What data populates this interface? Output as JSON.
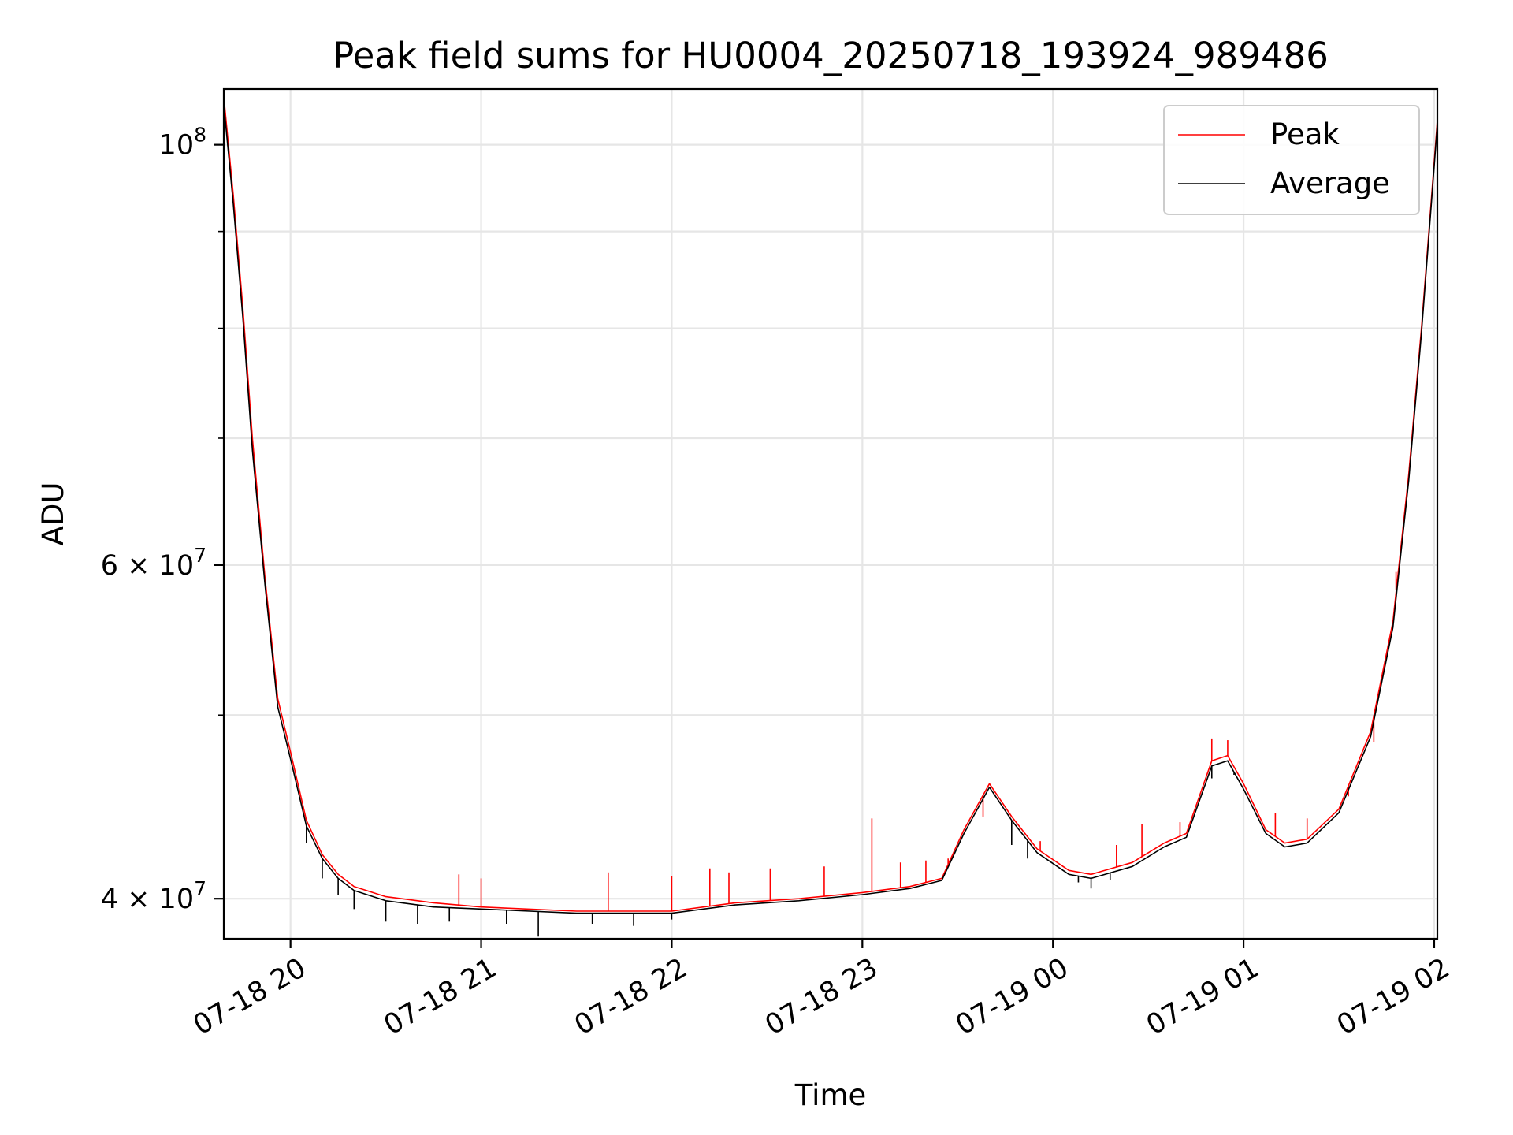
{
  "chart_data": {
    "type": "line",
    "title": "Peak field sums for HU0004_20250718_193924_989486",
    "xlabel": "Time",
    "ylabel": "ADU",
    "y_scale": "log",
    "grid": true,
    "legend_position": "top-right",
    "xlim": [
      "2025-07-18 19:39",
      "2025-07-19 02:01"
    ],
    "ylim": [
      38100000,
      107000000
    ],
    "x_ticks": [
      {
        "value": "2025-07-18 20:00",
        "label": "07-18 20"
      },
      {
        "value": "2025-07-18 21:00",
        "label": "07-18 21"
      },
      {
        "value": "2025-07-18 22:00",
        "label": "07-18 22"
      },
      {
        "value": "2025-07-18 23:00",
        "label": "07-18 23"
      },
      {
        "value": "2025-07-19 00:00",
        "label": "07-19 00"
      },
      {
        "value": "2025-07-19 01:00",
        "label": "07-19 01"
      },
      {
        "value": "2025-07-19 02:00",
        "label": "07-19 02"
      }
    ],
    "y_ticks": [
      {
        "value": 40000000,
        "label_base": "4 × 10",
        "label_exp": "7"
      },
      {
        "value": 60000000,
        "label_base": "6 × 10",
        "label_exp": "7"
      },
      {
        "value": 100000000,
        "label_base": "10",
        "label_exp": "8"
      }
    ],
    "y_minor_ticks": [
      50000000,
      70000000,
      80000000,
      90000000
    ],
    "series": [
      {
        "name": "Peak",
        "color": "#ff0000",
        "x": [
          "2025-07-18 19:39",
          "2025-07-18 19:42",
          "2025-07-18 19:45",
          "2025-07-18 19:48",
          "2025-07-18 19:52",
          "2025-07-18 19:56",
          "2025-07-18 20:00",
          "2025-07-18 20:05",
          "2025-07-18 20:10",
          "2025-07-18 20:15",
          "2025-07-18 20:20",
          "2025-07-18 20:30",
          "2025-07-18 20:45",
          "2025-07-18 21:00",
          "2025-07-18 21:30",
          "2025-07-18 22:00",
          "2025-07-18 22:20",
          "2025-07-18 22:40",
          "2025-07-18 23:00",
          "2025-07-18 23:15",
          "2025-07-18 23:25",
          "2025-07-18 23:32",
          "2025-07-18 23:40",
          "2025-07-18 23:47",
          "2025-07-18 23:55",
          "2025-07-19 00:05",
          "2025-07-19 00:12",
          "2025-07-19 00:25",
          "2025-07-19 00:35",
          "2025-07-19 00:42",
          "2025-07-19 00:50",
          "2025-07-19 00:55",
          "2025-07-19 01:00",
          "2025-07-19 01:07",
          "2025-07-19 01:13",
          "2025-07-19 01:20",
          "2025-07-19 01:30",
          "2025-07-19 01:40",
          "2025-07-19 01:47",
          "2025-07-19 01:52",
          "2025-07-19 01:56",
          "2025-07-19 01:59",
          "2025-07-19 02:01"
        ],
        "values": [
          106000000,
          94000000,
          82000000,
          70000000,
          59000000,
          51000000,
          47800000,
          44000000,
          42200000,
          41200000,
          40600000,
          40100000,
          39800000,
          39600000,
          39400000,
          39400000,
          39800000,
          40000000,
          40300000,
          40600000,
          41000000,
          43500000,
          46000000,
          44200000,
          42500000,
          41400000,
          41200000,
          41800000,
          42800000,
          43300000,
          47300000,
          47600000,
          46000000,
          43500000,
          42800000,
          43000000,
          44600000,
          49000000,
          56000000,
          67000000,
          80000000,
          93000000,
          103000000
        ],
        "spikes": [
          [
            "2025-07-18 20:53",
            41200000
          ],
          [
            "2025-07-18 21:00",
            41000000
          ],
          [
            "2025-07-18 21:40",
            41300000
          ],
          [
            "2025-07-18 22:00",
            41100000
          ],
          [
            "2025-07-18 22:12",
            41500000
          ],
          [
            "2025-07-18 22:18",
            41300000
          ],
          [
            "2025-07-18 22:31",
            41500000
          ],
          [
            "2025-07-18 22:48",
            41600000
          ],
          [
            "2025-07-18 23:03",
            44100000
          ],
          [
            "2025-07-18 23:12",
            41800000
          ],
          [
            "2025-07-18 23:20",
            41900000
          ],
          [
            "2025-07-18 23:27",
            42000000
          ],
          [
            "2025-07-18 23:38",
            44200000
          ],
          [
            "2025-07-18 23:56",
            42900000
          ],
          [
            "2025-07-19 00:20",
            42700000
          ],
          [
            "2025-07-19 00:28",
            43800000
          ],
          [
            "2025-07-19 00:40",
            43900000
          ],
          [
            "2025-07-19 00:50",
            48600000
          ],
          [
            "2025-07-19 00:55",
            48500000
          ],
          [
            "2025-07-19 01:10",
            44400000
          ],
          [
            "2025-07-19 01:20",
            44100000
          ],
          [
            "2025-07-19 01:33",
            45300000
          ],
          [
            "2025-07-19 01:41",
            48400000
          ],
          [
            "2025-07-19 01:48",
            59500000
          ]
        ]
      },
      {
        "name": "Average",
        "color": "#000000",
        "x": [
          "2025-07-18 19:39",
          "2025-07-18 19:42",
          "2025-07-18 19:45",
          "2025-07-18 19:48",
          "2025-07-18 19:52",
          "2025-07-18 19:56",
          "2025-07-18 20:00",
          "2025-07-18 20:05",
          "2025-07-18 20:10",
          "2025-07-18 20:15",
          "2025-07-18 20:20",
          "2025-07-18 20:30",
          "2025-07-18 20:45",
          "2025-07-18 21:00",
          "2025-07-18 21:30",
          "2025-07-18 22:00",
          "2025-07-18 22:20",
          "2025-07-18 22:40",
          "2025-07-18 23:00",
          "2025-07-18 23:15",
          "2025-07-18 23:25",
          "2025-07-18 23:32",
          "2025-07-18 23:40",
          "2025-07-18 23:47",
          "2025-07-18 23:55",
          "2025-07-19 00:05",
          "2025-07-19 00:12",
          "2025-07-19 00:25",
          "2025-07-19 00:35",
          "2025-07-19 00:42",
          "2025-07-19 00:50",
          "2025-07-19 00:55",
          "2025-07-19 01:00",
          "2025-07-19 01:07",
          "2025-07-19 01:13",
          "2025-07-19 01:20",
          "2025-07-19 01:30",
          "2025-07-19 01:40",
          "2025-07-19 01:47",
          "2025-07-19 01:52",
          "2025-07-19 01:56",
          "2025-07-19 01:59",
          "2025-07-19 02:01"
        ],
        "values": [
          105000000,
          93000000,
          81000000,
          69000000,
          58500000,
          50500000,
          47400000,
          43700000,
          42000000,
          41000000,
          40400000,
          39900000,
          39600000,
          39500000,
          39300000,
          39300000,
          39700000,
          39900000,
          40200000,
          40500000,
          40900000,
          43300000,
          45800000,
          44000000,
          42300000,
          41200000,
          41000000,
          41600000,
          42600000,
          43100000,
          47000000,
          47300000,
          45700000,
          43300000,
          42600000,
          42800000,
          44400000,
          48700000,
          55600000,
          66500000,
          79500000,
          92500000,
          102500000
        ],
        "dips": [
          [
            "2025-07-18 20:05",
            42800000
          ],
          [
            "2025-07-18 20:10",
            41000000
          ],
          [
            "2025-07-18 20:15",
            40200000
          ],
          [
            "2025-07-18 20:20",
            39500000
          ],
          [
            "2025-07-18 20:30",
            38900000
          ],
          [
            "2025-07-18 20:40",
            38800000
          ],
          [
            "2025-07-18 20:50",
            38900000
          ],
          [
            "2025-07-18 21:08",
            38800000
          ],
          [
            "2025-07-18 21:18",
            38200000
          ],
          [
            "2025-07-18 21:35",
            38800000
          ],
          [
            "2025-07-18 21:48",
            38700000
          ],
          [
            "2025-07-18 22:00",
            39000000
          ],
          [
            "2025-07-18 23:47",
            42700000
          ],
          [
            "2025-07-18 23:52",
            42000000
          ],
          [
            "2025-07-19 00:08",
            40800000
          ],
          [
            "2025-07-19 00:12",
            40500000
          ],
          [
            "2025-07-19 00:18",
            40900000
          ],
          [
            "2025-07-19 00:50",
            46300000
          ],
          [
            "2025-07-19 00:57",
            46500000
          ]
        ]
      }
    ]
  }
}
